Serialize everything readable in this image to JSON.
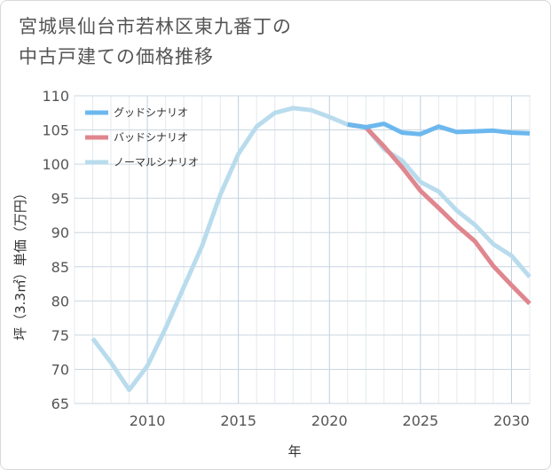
{
  "title_lines": [
    "宮城県仙台市若林区東九番丁の",
    "中古戸建ての価格推移"
  ],
  "chart_data": {
    "type": "line",
    "xlabel": "年",
    "ylabel": "坪（3.3㎡）単価（万円）",
    "xlim": [
      2006,
      2031
    ],
    "ylim": [
      65,
      110
    ],
    "xticks": [
      2010,
      2015,
      2020,
      2025,
      2030
    ],
    "yticks": [
      65,
      70,
      75,
      80,
      85,
      90,
      95,
      100,
      105,
      110
    ],
    "grid": true,
    "legend_position": "top-left",
    "series": [
      {
        "name": "グッドシナリオ",
        "color": "#6cb8ee",
        "x": [
          2021,
          2022,
          2023,
          2024,
          2025,
          2026,
          2027,
          2028,
          2029,
          2030,
          2031
        ],
        "y": [
          105.8,
          105.4,
          105.9,
          104.6,
          104.4,
          105.5,
          104.7,
          104.8,
          104.9,
          104.6,
          104.5
        ]
      },
      {
        "name": "バッドシナリオ",
        "color": "#e0868e",
        "x": [
          2021,
          2022,
          2023,
          2024,
          2025,
          2026,
          2027,
          2028,
          2029,
          2030,
          2031
        ],
        "y": [
          105.8,
          105.4,
          102.6,
          99.5,
          96.1,
          93.6,
          91.0,
          88.7,
          85.1,
          82.3,
          79.6
        ]
      },
      {
        "name": "ノーマルシナリオ",
        "color": "#b9dced",
        "x": [
          2007,
          2008,
          2009,
          2010,
          2011,
          2012,
          2013,
          2014,
          2015,
          2016,
          2017,
          2018,
          2019,
          2020,
          2021,
          2022,
          2023,
          2024,
          2025,
          2026,
          2027,
          2028,
          2029,
          2030,
          2031
        ],
        "y": [
          74.5,
          71.0,
          67.0,
          70.5,
          76.0,
          82.0,
          88.0,
          95.5,
          101.5,
          105.5,
          107.5,
          108.2,
          107.9,
          106.9,
          105.8,
          105.4,
          102.2,
          100.5,
          97.4,
          96.0,
          93.2,
          91.1,
          88.3,
          86.6,
          83.5
        ]
      }
    ]
  }
}
